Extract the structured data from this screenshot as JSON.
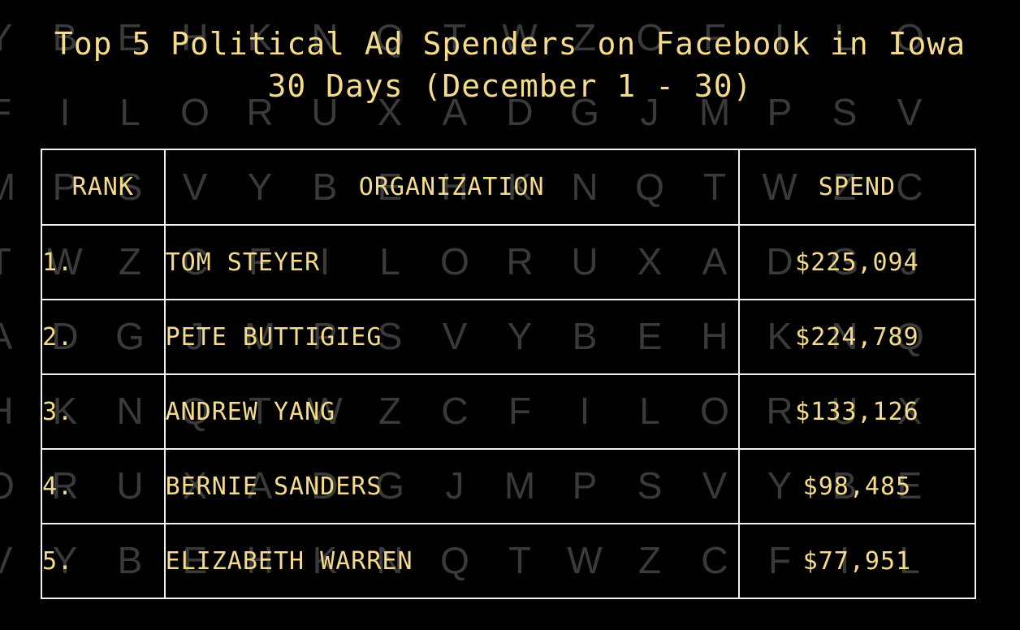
{
  "chart_data": {
    "type": "table",
    "title": "Top 5 Political Ad Spenders on Facebook in Iowa",
    "subtitle": "30 Days (December 1 - 30)",
    "columns": [
      "RANK",
      "ORGANIZATION",
      "SPEND"
    ],
    "rows": [
      {
        "rank": "1.",
        "organization": "TOM STEYER",
        "spend": "$225,094"
      },
      {
        "rank": "2.",
        "organization": "PETE BUTTIGIEG",
        "spend": "$224,789"
      },
      {
        "rank": "3.",
        "organization": "ANDREW YANG",
        "spend": "$133,126"
      },
      {
        "rank": "4.",
        "organization": "BERNIE SANDERS",
        "spend": "$98,485"
      },
      {
        "rank": "5.",
        "organization": "ELIZABETH WARREN",
        "spend": "$77,951"
      }
    ],
    "values": [
      225094,
      224789,
      133126,
      98485,
      77951
    ]
  },
  "colors": {
    "background": "#000000",
    "text": "#f5dc8c",
    "border": "#f2f2f2",
    "background_letters": "#3a3a3a"
  }
}
